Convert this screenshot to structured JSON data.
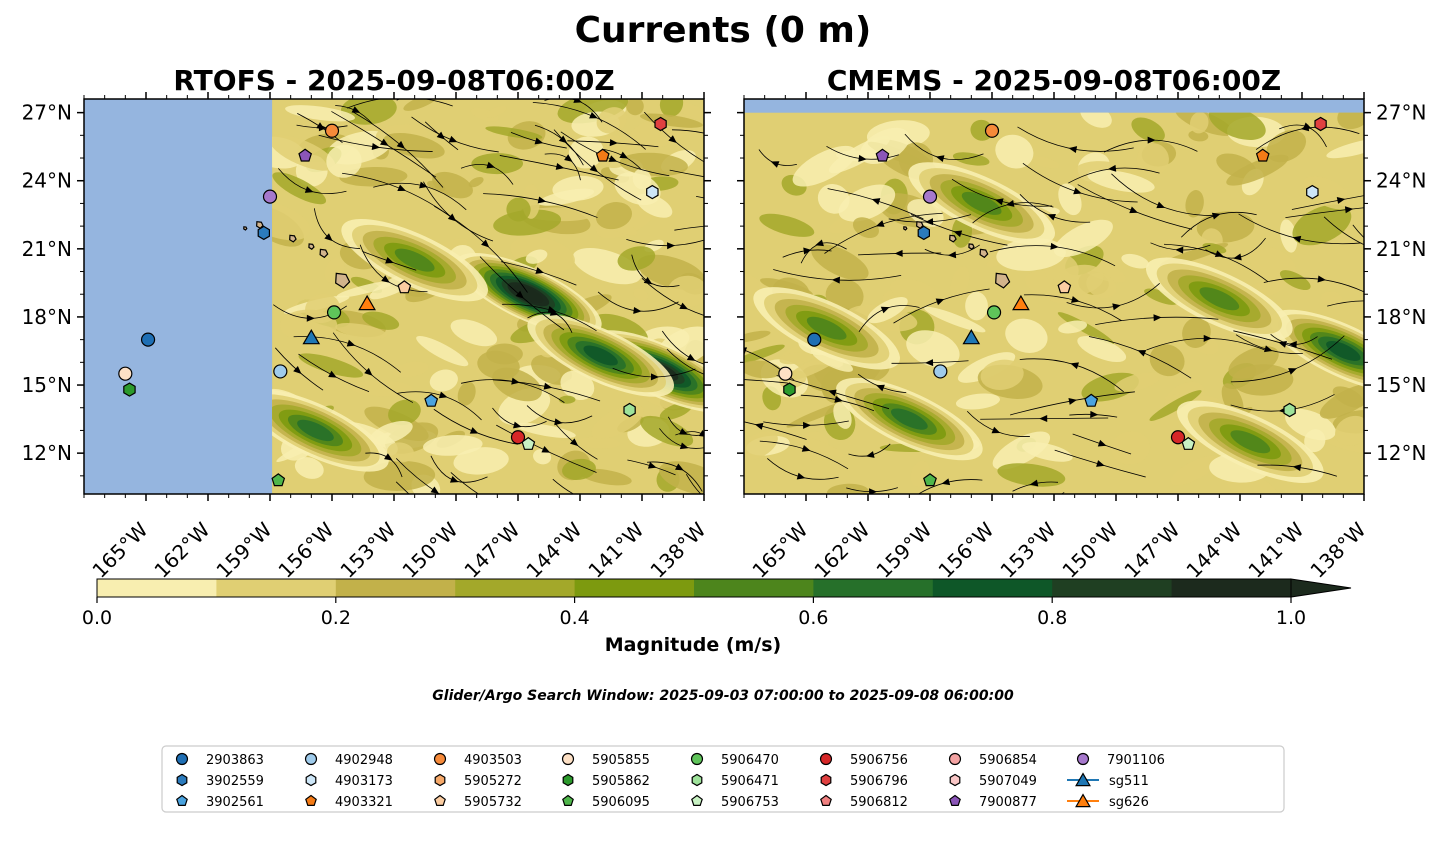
{
  "figure": {
    "title": "Currents (0 m)",
    "search_window": "Glider/Argo Search Window: 2025-09-03 07:00:00 to 2025-09-08 06:00:00"
  },
  "chart_data": [
    {
      "type": "map",
      "title": "RTOFS - 2025-09-08T06:00Z",
      "lon_range": [
        -168,
        -138
      ],
      "lat_range": [
        10.2,
        27.6
      ],
      "x_ticks": [
        "165°W",
        "162°W",
        "159°W",
        "156°W",
        "153°W",
        "150°W",
        "147°W",
        "144°W",
        "141°W",
        "138°W"
      ],
      "x_tick_values": [
        -165,
        -162,
        -159,
        -156,
        -153,
        -150,
        -147,
        -144,
        -141,
        -138
      ],
      "y_ticks": [
        "12°N",
        "15°N",
        "18°N",
        "21°N",
        "24°N",
        "27°N"
      ],
      "y_tick_values": [
        12,
        15,
        18,
        21,
        24,
        27
      ],
      "y_tick_side": "left",
      "data_lon_min": -158.9,
      "jets": [
        {
          "lon": -146.5,
          "lat": 19.0,
          "magnitude": 0.95
        },
        {
          "lon": -140.0,
          "lat": 15.6,
          "magnitude": 0.9
        },
        {
          "lon": -143.0,
          "lat": 16.3,
          "magnitude": 0.7
        },
        {
          "lon": -156.8,
          "lat": 13.0,
          "magnitude": 0.55
        },
        {
          "lon": -152.0,
          "lat": 20.5,
          "magnitude": 0.45
        }
      ]
    },
    {
      "type": "map",
      "title": "CMEMS - 2025-09-08T06:00Z",
      "lon_range": [
        -168,
        -138
      ],
      "lat_range": [
        10.2,
        27.6
      ],
      "x_ticks": [
        "165°W",
        "162°W",
        "159°W",
        "156°W",
        "153°W",
        "150°W",
        "147°W",
        "144°W",
        "141°W",
        "138°W"
      ],
      "x_tick_values": [
        -165,
        -162,
        -159,
        -156,
        -153,
        -150,
        -147,
        -144,
        -141,
        -138
      ],
      "y_ticks": [
        "12°N",
        "15°N",
        "18°N",
        "21°N",
        "24°N",
        "27°N"
      ],
      "y_tick_values": [
        12,
        15,
        18,
        21,
        24,
        27
      ],
      "y_tick_side": "right",
      "data_lat_max": 27.0,
      "jets": [
        {
          "lon": -139.0,
          "lat": 16.5,
          "magnitude": 0.65
        },
        {
          "lon": -160.0,
          "lat": 13.5,
          "magnitude": 0.55
        },
        {
          "lon": -156.5,
          "lat": 23.0,
          "magnitude": 0.5
        },
        {
          "lon": -145.0,
          "lat": 18.8,
          "magnitude": 0.45
        },
        {
          "lon": -164.0,
          "lat": 17.5,
          "magnitude": 0.45
        },
        {
          "lon": -143.5,
          "lat": 12.5,
          "magnitude": 0.5
        }
      ]
    }
  ],
  "islands": [
    {
      "lon": -155.5,
      "lat": 19.6,
      "size": 0.55
    },
    {
      "lon": -156.4,
      "lat": 20.8,
      "size": 0.3
    },
    {
      "lon": -157.0,
      "lat": 21.1,
      "size": 0.2
    },
    {
      "lon": -157.9,
      "lat": 21.45,
      "size": 0.25
    },
    {
      "lon": -159.5,
      "lat": 22.05,
      "size": 0.25
    },
    {
      "lon": -160.2,
      "lat": 21.9,
      "size": 0.12
    }
  ],
  "colorbar": {
    "label": "Magnitude (m/s)",
    "min": 0.0,
    "max": 1.0,
    "ticks": [
      "0.0",
      "0.2",
      "0.4",
      "0.6",
      "0.8",
      "1.0"
    ],
    "tick_values": [
      0,
      0.2,
      0.4,
      0.6,
      0.8,
      1.0
    ],
    "colors": [
      "#f8eeb0",
      "#e0cf73",
      "#c2b14a",
      "#a3a82a",
      "#7d9a0f",
      "#4d851c",
      "#26702a",
      "#0e5728",
      "#1f3f22",
      "#1c2a1d"
    ],
    "extend": "max",
    "land_color": "#95b5df"
  },
  "platforms": [
    {
      "id": "2903863",
      "marker": "circle",
      "color": "#1f6fb4",
      "lon": [
        -164.9,
        -164.6
      ],
      "lat": [
        17.0,
        17.0
      ]
    },
    {
      "id": "3902559",
      "marker": "hexagon",
      "color": "#2b7bbd",
      "lon": [
        -159.3,
        -159.3
      ],
      "lat": [
        21.7,
        21.7
      ]
    },
    {
      "id": "3902561",
      "marker": "pentagon",
      "color": "#4aa3df",
      "lon": [
        -151.2,
        -151.2
      ],
      "lat": [
        14.3,
        14.3
      ]
    },
    {
      "id": "4902948",
      "marker": "circle",
      "color": "#9fcbeb",
      "lon": [
        -158.5,
        -158.5
      ],
      "lat": [
        15.6,
        15.6
      ]
    },
    {
      "id": "4903173",
      "marker": "hexagon",
      "color": "#cde6f7",
      "lon": [
        -140.5,
        -140.5
      ],
      "lat": [
        23.5,
        23.5
      ]
    },
    {
      "id": "4903321",
      "marker": "pentagon",
      "color": "#f47b16",
      "lon": [
        -142.9,
        -142.9
      ],
      "lat": [
        25.1,
        25.1
      ]
    },
    {
      "id": "4903503",
      "marker": "circle",
      "color": "#f68a3a",
      "lon": [
        -156.0,
        -156.0
      ],
      "lat": [
        26.2,
        26.2
      ]
    },
    {
      "id": "5905272",
      "marker": "hexagon",
      "color": "#f6a96a",
      "lon": [],
      "lat": []
    },
    {
      "id": "5905732",
      "marker": "pentagon",
      "color": "#fbcda2",
      "lon": [
        -152.5,
        -152.5
      ],
      "lat": [
        19.3,
        19.3
      ]
    },
    {
      "id": "5905855",
      "marker": "circle",
      "color": "#fde0c5",
      "lon": [
        -166.0,
        -166.0
      ],
      "lat": [
        15.5,
        15.5
      ]
    },
    {
      "id": "5905862",
      "marker": "hexagon",
      "color": "#2c9a2c",
      "lon": [
        -165.8,
        -165.8
      ],
      "lat": [
        14.8,
        14.8
      ]
    },
    {
      "id": "5906095",
      "marker": "pentagon",
      "color": "#4fb64b",
      "lon": [
        -158.6,
        -159.0
      ],
      "lat": [
        10.8,
        10.8
      ]
    },
    {
      "id": "5906470",
      "marker": "circle",
      "color": "#5fc45a",
      "lon": [
        -155.9,
        -155.9
      ],
      "lat": [
        18.2,
        18.2
      ]
    },
    {
      "id": "5906471",
      "marker": "hexagon",
      "color": "#9ee29a",
      "lon": [
        -141.6,
        -141.6
      ],
      "lat": [
        13.9,
        13.9
      ]
    },
    {
      "id": "5906753",
      "marker": "pentagon",
      "color": "#c8f2c3",
      "lon": [
        -146.5,
        -146.5
      ],
      "lat": [
        12.4,
        12.4
      ]
    },
    {
      "id": "5906756",
      "marker": "circle",
      "color": "#d62728",
      "lon": [
        -147.0,
        -147.0
      ],
      "lat": [
        12.7,
        12.7
      ]
    },
    {
      "id": "5906796",
      "marker": "hexagon",
      "color": "#e04040",
      "lon": [
        -140.1,
        -140.1
      ],
      "lat": [
        26.5,
        26.5
      ]
    },
    {
      "id": "5906812",
      "marker": "pentagon",
      "color": "#f08080",
      "lon": [],
      "lat": []
    },
    {
      "id": "5906854",
      "marker": "circle",
      "color": "#f4a3a3",
      "lon": [],
      "lat": []
    },
    {
      "id": "5907049",
      "marker": "hexagon",
      "color": "#f9c6c6",
      "lon": [],
      "lat": []
    },
    {
      "id": "7900877",
      "marker": "pentagon",
      "color": "#8b55b8",
      "lon": [
        -157.3,
        -161.3
      ],
      "lat": [
        25.1,
        25.1
      ]
    },
    {
      "id": "7901106",
      "marker": "circle",
      "color": "#a678cc",
      "lon": [
        -159.0,
        -159.0
      ],
      "lat": [
        23.3,
        23.3
      ]
    },
    {
      "id": "sg511",
      "marker": "triangle",
      "color": "#1f77b4",
      "lon": [
        -157.0,
        -157.0
      ],
      "lat": [
        17.1,
        17.1
      ]
    },
    {
      "id": "sg626",
      "marker": "triangle",
      "color": "#ff7f0e",
      "lon": [
        -154.3,
        -154.6
      ],
      "lat": [
        18.6,
        18.6
      ]
    }
  ]
}
